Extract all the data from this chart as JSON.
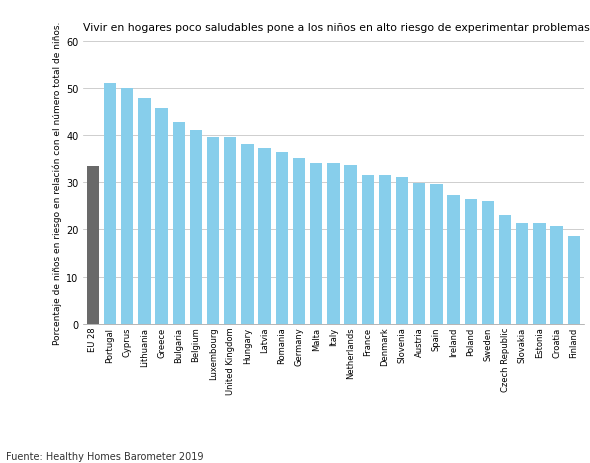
{
  "title": "Vivir en hogares poco saludables pone a los niños en alto riesgo de experimentar problemas de salud",
  "ylabel": "Porcentaje de niños en riesgo en relación con el número total de niños.",
  "source": "Fuente: Healthy Homes Barometer 2019",
  "categories": [
    "EU 28",
    "Portugal",
    "Cyprus",
    "Lithuania",
    "Greece",
    "Bulgaria",
    "Belgium",
    "Luxembourg",
    "United Kingdom",
    "Hungary",
    "Latvia",
    "Romania",
    "Germany",
    "Malta",
    "Italy",
    "Netherlands",
    "France",
    "Denmark",
    "Slovenia",
    "Austria",
    "Spain",
    "Ireland",
    "Poland",
    "Sweden",
    "Czech Republic",
    "Slovakia",
    "Estonia",
    "Croatia",
    "Finland"
  ],
  "values": [
    33.5,
    51.0,
    50.0,
    47.8,
    45.7,
    42.7,
    41.1,
    39.7,
    39.6,
    38.2,
    37.3,
    36.5,
    35.2,
    34.0,
    34.0,
    33.6,
    31.5,
    31.5,
    31.2,
    29.9,
    29.7,
    27.3,
    26.5,
    26.0,
    23.0,
    21.4,
    21.3,
    20.7,
    18.7
  ],
  "bar_color_eu": "#696969",
  "bar_color_rest": "#87CEEB",
  "ylim": [
    0,
    60
  ],
  "yticks": [
    0,
    10,
    20,
    30,
    40,
    50,
    60
  ],
  "background_color": "#ffffff",
  "title_fontsize": 7.8,
  "ylabel_fontsize": 6.5,
  "xtick_fontsize": 6.0,
  "ytick_fontsize": 7.0,
  "source_fontsize": 7.0,
  "grid_color": "#bbbbbb",
  "spine_color": "#999999"
}
